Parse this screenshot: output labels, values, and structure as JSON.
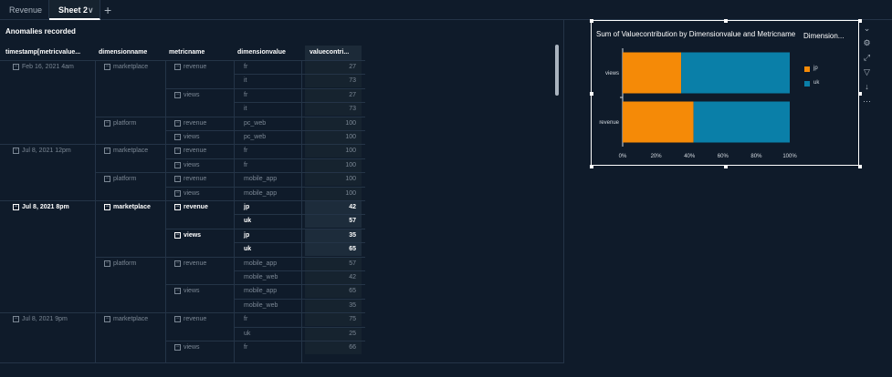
{
  "tabs": [
    {
      "label": "Revenue",
      "active": false
    },
    {
      "label": "Sheet 2",
      "active": true
    }
  ],
  "table_visual": {
    "title": "Anomalies recorded",
    "columns": [
      "timestamp[metricvalue...",
      "dimensionname",
      "metricname",
      "dimensionvalue",
      "valuecontri..."
    ],
    "rows": [
      {
        "ts": "Feb 16, 2021 4am",
        "dim": "marketplace",
        "metric": "revenue",
        "dv": "fr",
        "val": "27",
        "hl": false
      },
      {
        "ts": "",
        "dim": "",
        "metric": "",
        "dv": "it",
        "val": "73",
        "hl": false
      },
      {
        "ts": "",
        "dim": "",
        "metric": "views",
        "dv": "fr",
        "val": "27",
        "hl": false
      },
      {
        "ts": "",
        "dim": "",
        "metric": "",
        "dv": "it",
        "val": "73",
        "hl": false
      },
      {
        "ts": "",
        "dim": "platform",
        "metric": "revenue",
        "dv": "pc_web",
        "val": "100",
        "hl": false
      },
      {
        "ts": "",
        "dim": "",
        "metric": "views",
        "dv": "pc_web",
        "val": "100",
        "hl": false
      },
      {
        "ts": "Jul 8, 2021 12pm",
        "dim": "marketplace",
        "metric": "revenue",
        "dv": "fr",
        "val": "100",
        "hl": false
      },
      {
        "ts": "",
        "dim": "",
        "metric": "views",
        "dv": "fr",
        "val": "100",
        "hl": false
      },
      {
        "ts": "",
        "dim": "platform",
        "metric": "revenue",
        "dv": "mobile_app",
        "val": "100",
        "hl": false
      },
      {
        "ts": "",
        "dim": "",
        "metric": "views",
        "dv": "mobile_app",
        "val": "100",
        "hl": false
      },
      {
        "ts": "Jul 8, 2021 8pm",
        "dim": "marketplace",
        "metric": "revenue",
        "dv": "jp",
        "val": "42",
        "hl": true
      },
      {
        "ts": "",
        "dim": "",
        "metric": "",
        "dv": "uk",
        "val": "57",
        "hl": true
      },
      {
        "ts": "",
        "dim": "",
        "metric": "views",
        "dv": "jp",
        "val": "35",
        "hl": true
      },
      {
        "ts": "",
        "dim": "",
        "metric": "",
        "dv": "uk",
        "val": "65",
        "hl": true
      },
      {
        "ts": "",
        "dim": "platform",
        "metric": "revenue",
        "dv": "mobile_app",
        "val": "57",
        "hl": false
      },
      {
        "ts": "",
        "dim": "",
        "metric": "",
        "dv": "mobile_web",
        "val": "42",
        "hl": false
      },
      {
        "ts": "",
        "dim": "",
        "metric": "views",
        "dv": "mobile_app",
        "val": "65",
        "hl": false
      },
      {
        "ts": "",
        "dim": "",
        "metric": "",
        "dv": "mobile_web",
        "val": "35",
        "hl": false
      },
      {
        "ts": "Jul 8, 2021 9pm",
        "dim": "marketplace",
        "metric": "revenue",
        "dv": "fr",
        "val": "75",
        "hl": false
      },
      {
        "ts": "",
        "dim": "",
        "metric": "",
        "dv": "uk",
        "val": "25",
        "hl": false
      },
      {
        "ts": "",
        "dim": "",
        "metric": "views",
        "dv": "fr",
        "val": "66",
        "hl": false
      }
    ]
  },
  "chart_visual": {
    "title": "Sum of Valuecontribution by Dimensionvalue and Metricname",
    "legend_title": "Dimension...",
    "colors": {
      "jp": "#f58a07",
      "uk": "#0a7fa8"
    }
  },
  "chart_data": {
    "type": "bar",
    "orientation": "horizontal",
    "stacked": "percent",
    "categories": [
      "views",
      "revenue"
    ],
    "series": [
      {
        "name": "jp",
        "values": [
          35,
          42
        ]
      },
      {
        "name": "uk",
        "values": [
          65,
          57
        ]
      }
    ],
    "x_ticks": [
      "0%",
      "20%",
      "40%",
      "60%",
      "80%",
      "100%"
    ],
    "legend_position": "right"
  },
  "toolbar": {
    "icons": [
      "collapse-icon",
      "settings-icon",
      "expand-icon",
      "filter-icon",
      "sort-icon",
      "more-icon"
    ]
  }
}
